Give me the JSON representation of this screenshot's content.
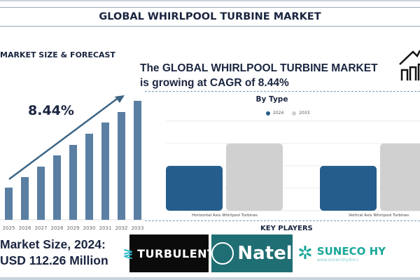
{
  "header": {
    "title": "GLOBAL WHIRLPOOL TURBINE MARKET"
  },
  "left": {
    "section_title": "MARKET SIZE & FORECAST",
    "cagr": "8.44%",
    "market_size_line1": "Market Size, 2024:",
    "market_size_line2": "USD 112.26 Million"
  },
  "headline": {
    "line1": "The GLOBAL WHIRLPOOL TURBINE MARKET",
    "line2": "is growing at CAGR of 8.44%",
    "icon": "house-growth-icon"
  },
  "key_players": {
    "title": "KEY PLAYERS",
    "logos": [
      {
        "name": "TURBULENT",
        "bg": "#0b0b0b"
      },
      {
        "name": "Natel",
        "bg": "#1f6e73"
      },
      {
        "name": "SUNECO HY",
        "sub": "www.sunecohydro.c",
        "color": "#1aa89a"
      }
    ]
  },
  "colors": {
    "bar_forecast": "#5a7fa3",
    "series_2024": "#255e8c",
    "series_2033": "#d0d0d0",
    "text": "#1a2540"
  },
  "chart_data": [
    {
      "type": "bar",
      "title": "",
      "categories": [
        "2025",
        "2026",
        "2027",
        "2028",
        "2029",
        "2030",
        "2031",
        "2032",
        "2033"
      ],
      "values": [
        46,
        61,
        76,
        92,
        107,
        123,
        139,
        154,
        170
      ],
      "annotation": "8.44%",
      "grid": false,
      "legend": "none"
    },
    {
      "type": "bar",
      "title": "By Type",
      "categories": [
        "Horizontal Axis Whirlpool Turbines",
        "Vertical Axis Whirlpool Turbines"
      ],
      "series": [
        {
          "name": "2024",
          "values": [
            2,
            2
          ]
        },
        {
          "name": "2033",
          "values": [
            3,
            3
          ]
        }
      ],
      "ylim": [
        0,
        4
      ],
      "grid": true,
      "legend": "top"
    }
  ]
}
